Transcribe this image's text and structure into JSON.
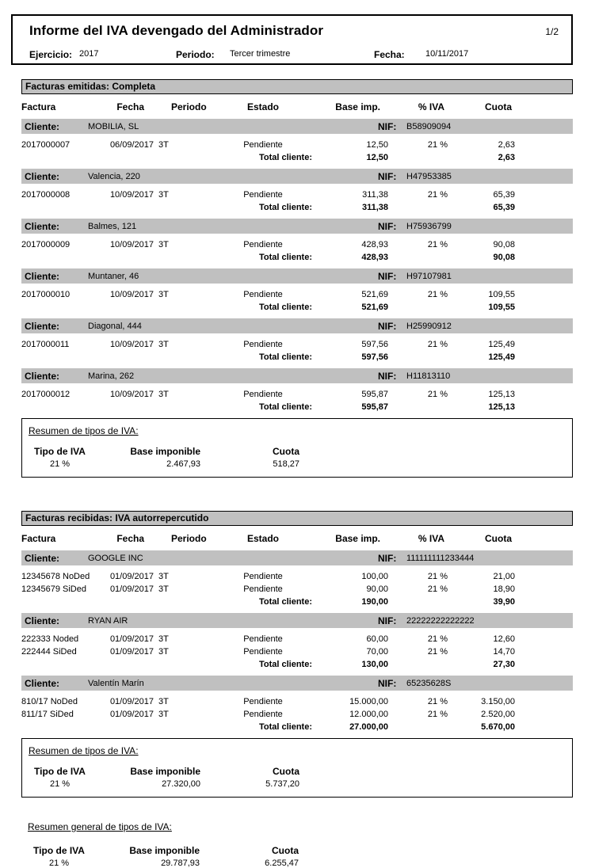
{
  "header": {
    "title": "Informe del IVA devengado del Administrador",
    "page": "1/2",
    "ejercicio_label": "Ejercicio:",
    "ejercicio": "2017",
    "periodo_label": "Periodo:",
    "periodo": "Tercer trimestre",
    "fecha_label": "Fecha:",
    "fecha": "10/11/2017"
  },
  "columns": [
    "Factura",
    "Fecha",
    "Periodo",
    "Estado",
    "Base imp.",
    "% IVA",
    "Cuota"
  ],
  "labels": {
    "cliente": "Cliente:",
    "nif": "NIF:",
    "total_cliente": "Total cliente:",
    "resumen": "Resumen de tipos de IVA:",
    "resumen_general": "Resumen general de tipos de IVA:",
    "tipo_de_iva": "Tipo de IVA",
    "base_imponible": "Base imponible",
    "cuota": "Cuota"
  },
  "colors": {
    "bar_gray": "#c0c0c0",
    "border": "#000000"
  },
  "sections": [
    {
      "title": "Facturas emitidas: Completa",
      "clients": [
        {
          "name": "MOBILIA, SL",
          "nif": "B58909094",
          "rows": [
            {
              "factura": "2017000007",
              "fecha": "06/09/2017",
              "periodo": "3T",
              "estado": "Pendiente",
              "base": "12,50",
              "iva": "21 %",
              "cuota": "2,63"
            }
          ],
          "total_base": "12,50",
          "total_cuota": "2,63"
        },
        {
          "name": "Valencia, 220",
          "nif": "H47953385",
          "rows": [
            {
              "factura": "2017000008",
              "fecha": "10/09/2017",
              "periodo": "3T",
              "estado": "Pendiente",
              "base": "311,38",
              "iva": "21 %",
              "cuota": "65,39"
            }
          ],
          "total_base": "311,38",
          "total_cuota": "65,39"
        },
        {
          "name": "Balmes, 121",
          "nif": "H75936799",
          "rows": [
            {
              "factura": "2017000009",
              "fecha": "10/09/2017",
              "periodo": "3T",
              "estado": "Pendiente",
              "base": "428,93",
              "iva": "21 %",
              "cuota": "90,08"
            }
          ],
          "total_base": "428,93",
          "total_cuota": "90,08"
        },
        {
          "name": "Muntaner, 46",
          "nif": "H97107981",
          "rows": [
            {
              "factura": "2017000010",
              "fecha": "10/09/2017",
              "periodo": "3T",
              "estado": "Pendiente",
              "base": "521,69",
              "iva": "21 %",
              "cuota": "109,55"
            }
          ],
          "total_base": "521,69",
          "total_cuota": "109,55"
        },
        {
          "name": "Diagonal, 444",
          "nif": "H25990912",
          "rows": [
            {
              "factura": "2017000011",
              "fecha": "10/09/2017",
              "periodo": "3T",
              "estado": "Pendiente",
              "base": "597,56",
              "iva": "21 %",
              "cuota": "125,49"
            }
          ],
          "total_base": "597,56",
          "total_cuota": "125,49"
        },
        {
          "name": "Marina, 262",
          "nif": "H11813110",
          "rows": [
            {
              "factura": "2017000012",
              "fecha": "10/09/2017",
              "periodo": "3T",
              "estado": "Pendiente",
              "base": "595,87",
              "iva": "21 %",
              "cuota": "125,13"
            }
          ],
          "total_base": "595,87",
          "total_cuota": "125,13"
        }
      ],
      "resumen": {
        "tipo": "21 %",
        "base": "2.467,93",
        "cuota": "518,27"
      }
    },
    {
      "title": "Facturas recibidas: IVA autorrepercutido",
      "clients": [
        {
          "name": "GOOGLE INC",
          "nif": "111111111233444",
          "rows": [
            {
              "factura": "12345678 NoDed",
              "fecha": "01/09/2017",
              "periodo": "3T",
              "estado": "Pendiente",
              "base": "100,00",
              "iva": "21 %",
              "cuota": "21,00"
            },
            {
              "factura": "12345679 SiDed",
              "fecha": "01/09/2017",
              "periodo": "3T",
              "estado": "Pendiente",
              "base": "90,00",
              "iva": "21 %",
              "cuota": "18,90"
            }
          ],
          "total_base": "190,00",
          "total_cuota": "39,90"
        },
        {
          "name": "RYAN AIR",
          "nif": "22222222222222",
          "rows": [
            {
              "factura": "222333 Noded",
              "fecha": "01/09/2017",
              "periodo": "3T",
              "estado": "Pendiente",
              "base": "60,00",
              "iva": "21 %",
              "cuota": "12,60"
            },
            {
              "factura": "222444 SiDed",
              "fecha": "01/09/2017",
              "periodo": "3T",
              "estado": "Pendiente",
              "base": "70,00",
              "iva": "21 %",
              "cuota": "14,70"
            }
          ],
          "total_base": "130,00",
          "total_cuota": "27,30"
        },
        {
          "name": "Valentín Marín",
          "nif": "65235628S",
          "rows": [
            {
              "factura": "810/17 NoDed",
              "fecha": "01/09/2017",
              "periodo": "3T",
              "estado": "Pendiente",
              "base": "15.000,00",
              "iva": "21 %",
              "cuota": "3.150,00"
            },
            {
              "factura": "811/17 SiDed",
              "fecha": "01/09/2017",
              "periodo": "3T",
              "estado": "Pendiente",
              "base": "12.000,00",
              "iva": "21 %",
              "cuota": "2.520,00"
            }
          ],
          "total_base": "27.000,00",
          "total_cuota": "5.670,00"
        }
      ],
      "resumen": {
        "tipo": "21 %",
        "base": "27.320,00",
        "cuota": "5.737,20"
      }
    }
  ],
  "resumen_general": {
    "tipo": "21 %",
    "base": "29.787,93",
    "cuota": "6.255,47"
  }
}
